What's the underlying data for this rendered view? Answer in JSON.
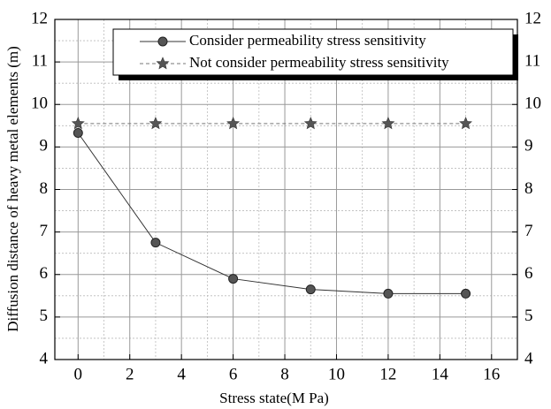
{
  "chart_data": {
    "type": "line",
    "x_label": "Stress state(M Pa)",
    "y_label": "Diffusion distance of heavy metal elements (m)",
    "x": [
      0,
      3,
      6,
      9,
      12,
      15
    ],
    "series": [
      {
        "name": "Consider permeability stress sensitivity",
        "color": "#333333",
        "marker": "circle",
        "dash": "solid",
        "values": [
          9.33,
          6.75,
          5.9,
          5.65,
          5.55,
          5.55
        ]
      },
      {
        "name": "Not consider permeability stress sensitivity",
        "color": "#777777",
        "marker": "star",
        "dash": "dashed",
        "values": [
          9.55,
          9.55,
          9.55,
          9.55,
          9.55,
          9.55
        ]
      }
    ],
    "xlim": [
      -0.9,
      17
    ],
    "xticks": [
      0,
      2,
      4,
      6,
      8,
      10,
      12,
      14,
      16
    ],
    "xminorticks": [
      1,
      3,
      5,
      7,
      9,
      11,
      13,
      15
    ],
    "ylim": [
      4,
      12
    ],
    "yticks": [
      4,
      5,
      6,
      7,
      8,
      9,
      10,
      11,
      12
    ],
    "yminorticks": [
      4.5,
      5.5,
      6.5,
      7.5,
      8.5,
      9.5,
      10.5,
      11.5
    ],
    "y2lim": [
      4,
      12
    ],
    "y2ticks": [
      4,
      5,
      6,
      7,
      8,
      9,
      10,
      11,
      12
    ],
    "grid": true,
    "legend": "upper right"
  }
}
